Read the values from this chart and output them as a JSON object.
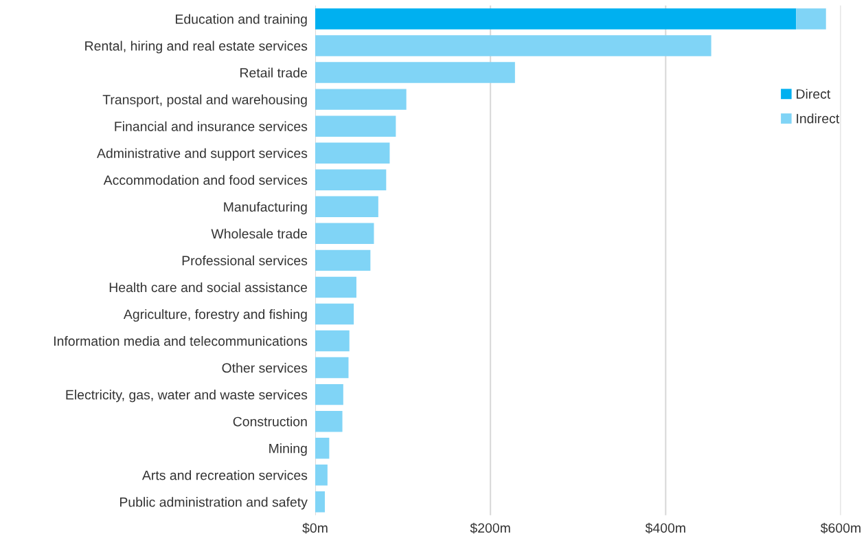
{
  "chart_data": {
    "type": "bar",
    "orientation": "horizontal",
    "stacked": true,
    "categories": [
      "Education and training",
      "Rental, hiring and real estate services",
      "Retail trade",
      "Transport, postal and warehousing",
      "Financial and insurance services",
      "Administrative and support services",
      "Accommodation and food services",
      "Manufacturing",
      "Wholesale trade",
      "Professional services",
      "Health care and social assistance",
      "Agriculture, forestry and fishing",
      "Information media and telecommunications",
      "Other services",
      "Electricity, gas, water and waste services",
      "Construction",
      "Mining",
      "Arts and recreation services",
      "Public administration and safety"
    ],
    "series": [
      {
        "name": "Direct",
        "color": "#00b0f0",
        "values": [
          549,
          null,
          null,
          null,
          null,
          null,
          null,
          null,
          null,
          null,
          null,
          null,
          null,
          null,
          null,
          null,
          null,
          null,
          null
        ]
      },
      {
        "name": "Indirect",
        "color": "#80d4f6",
        "values": [
          34,
          452,
          228,
          104,
          92,
          85,
          81,
          72,
          67,
          63,
          47,
          44,
          39,
          38,
          32,
          31,
          16,
          14,
          11
        ]
      }
    ],
    "xlim": [
      0,
      600
    ],
    "xticks": [
      {
        "value": 0,
        "label": "$0m"
      },
      {
        "value": 200,
        "label": "$200m"
      },
      {
        "value": 400,
        "label": "$400m"
      },
      {
        "value": 600,
        "label": "$600m"
      }
    ],
    "grid": "x",
    "legend": "top right"
  }
}
